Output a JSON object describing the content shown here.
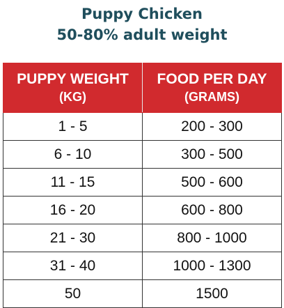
{
  "title_line1": "Puppy Chicken",
  "title_line2": "50-80% adult weight",
  "table": {
    "header": {
      "col1_line1": "PUPPY WEIGHT",
      "col1_line2": "(KG)",
      "col2_line1": "FOOD PER DAY",
      "col2_line2": "(GRAMS)"
    },
    "rows": [
      {
        "weight": "1 - 5",
        "food": "200 - 300"
      },
      {
        "weight": "6 - 10",
        "food": "300 - 500"
      },
      {
        "weight": "11 - 15",
        "food": "500 - 600"
      },
      {
        "weight": "16 - 20",
        "food": "600 - 800"
      },
      {
        "weight": "21 - 30",
        "food": "800 - 1000"
      },
      {
        "weight": "31 - 40",
        "food": "1000 - 1300"
      },
      {
        "weight": "50",
        "food": "1500"
      }
    ]
  },
  "colors": {
    "title": "#1f4e5c",
    "header_bg": "#d12a2e",
    "header_text": "#ffffff",
    "cell_text": "#111111",
    "grid": "#333333"
  }
}
